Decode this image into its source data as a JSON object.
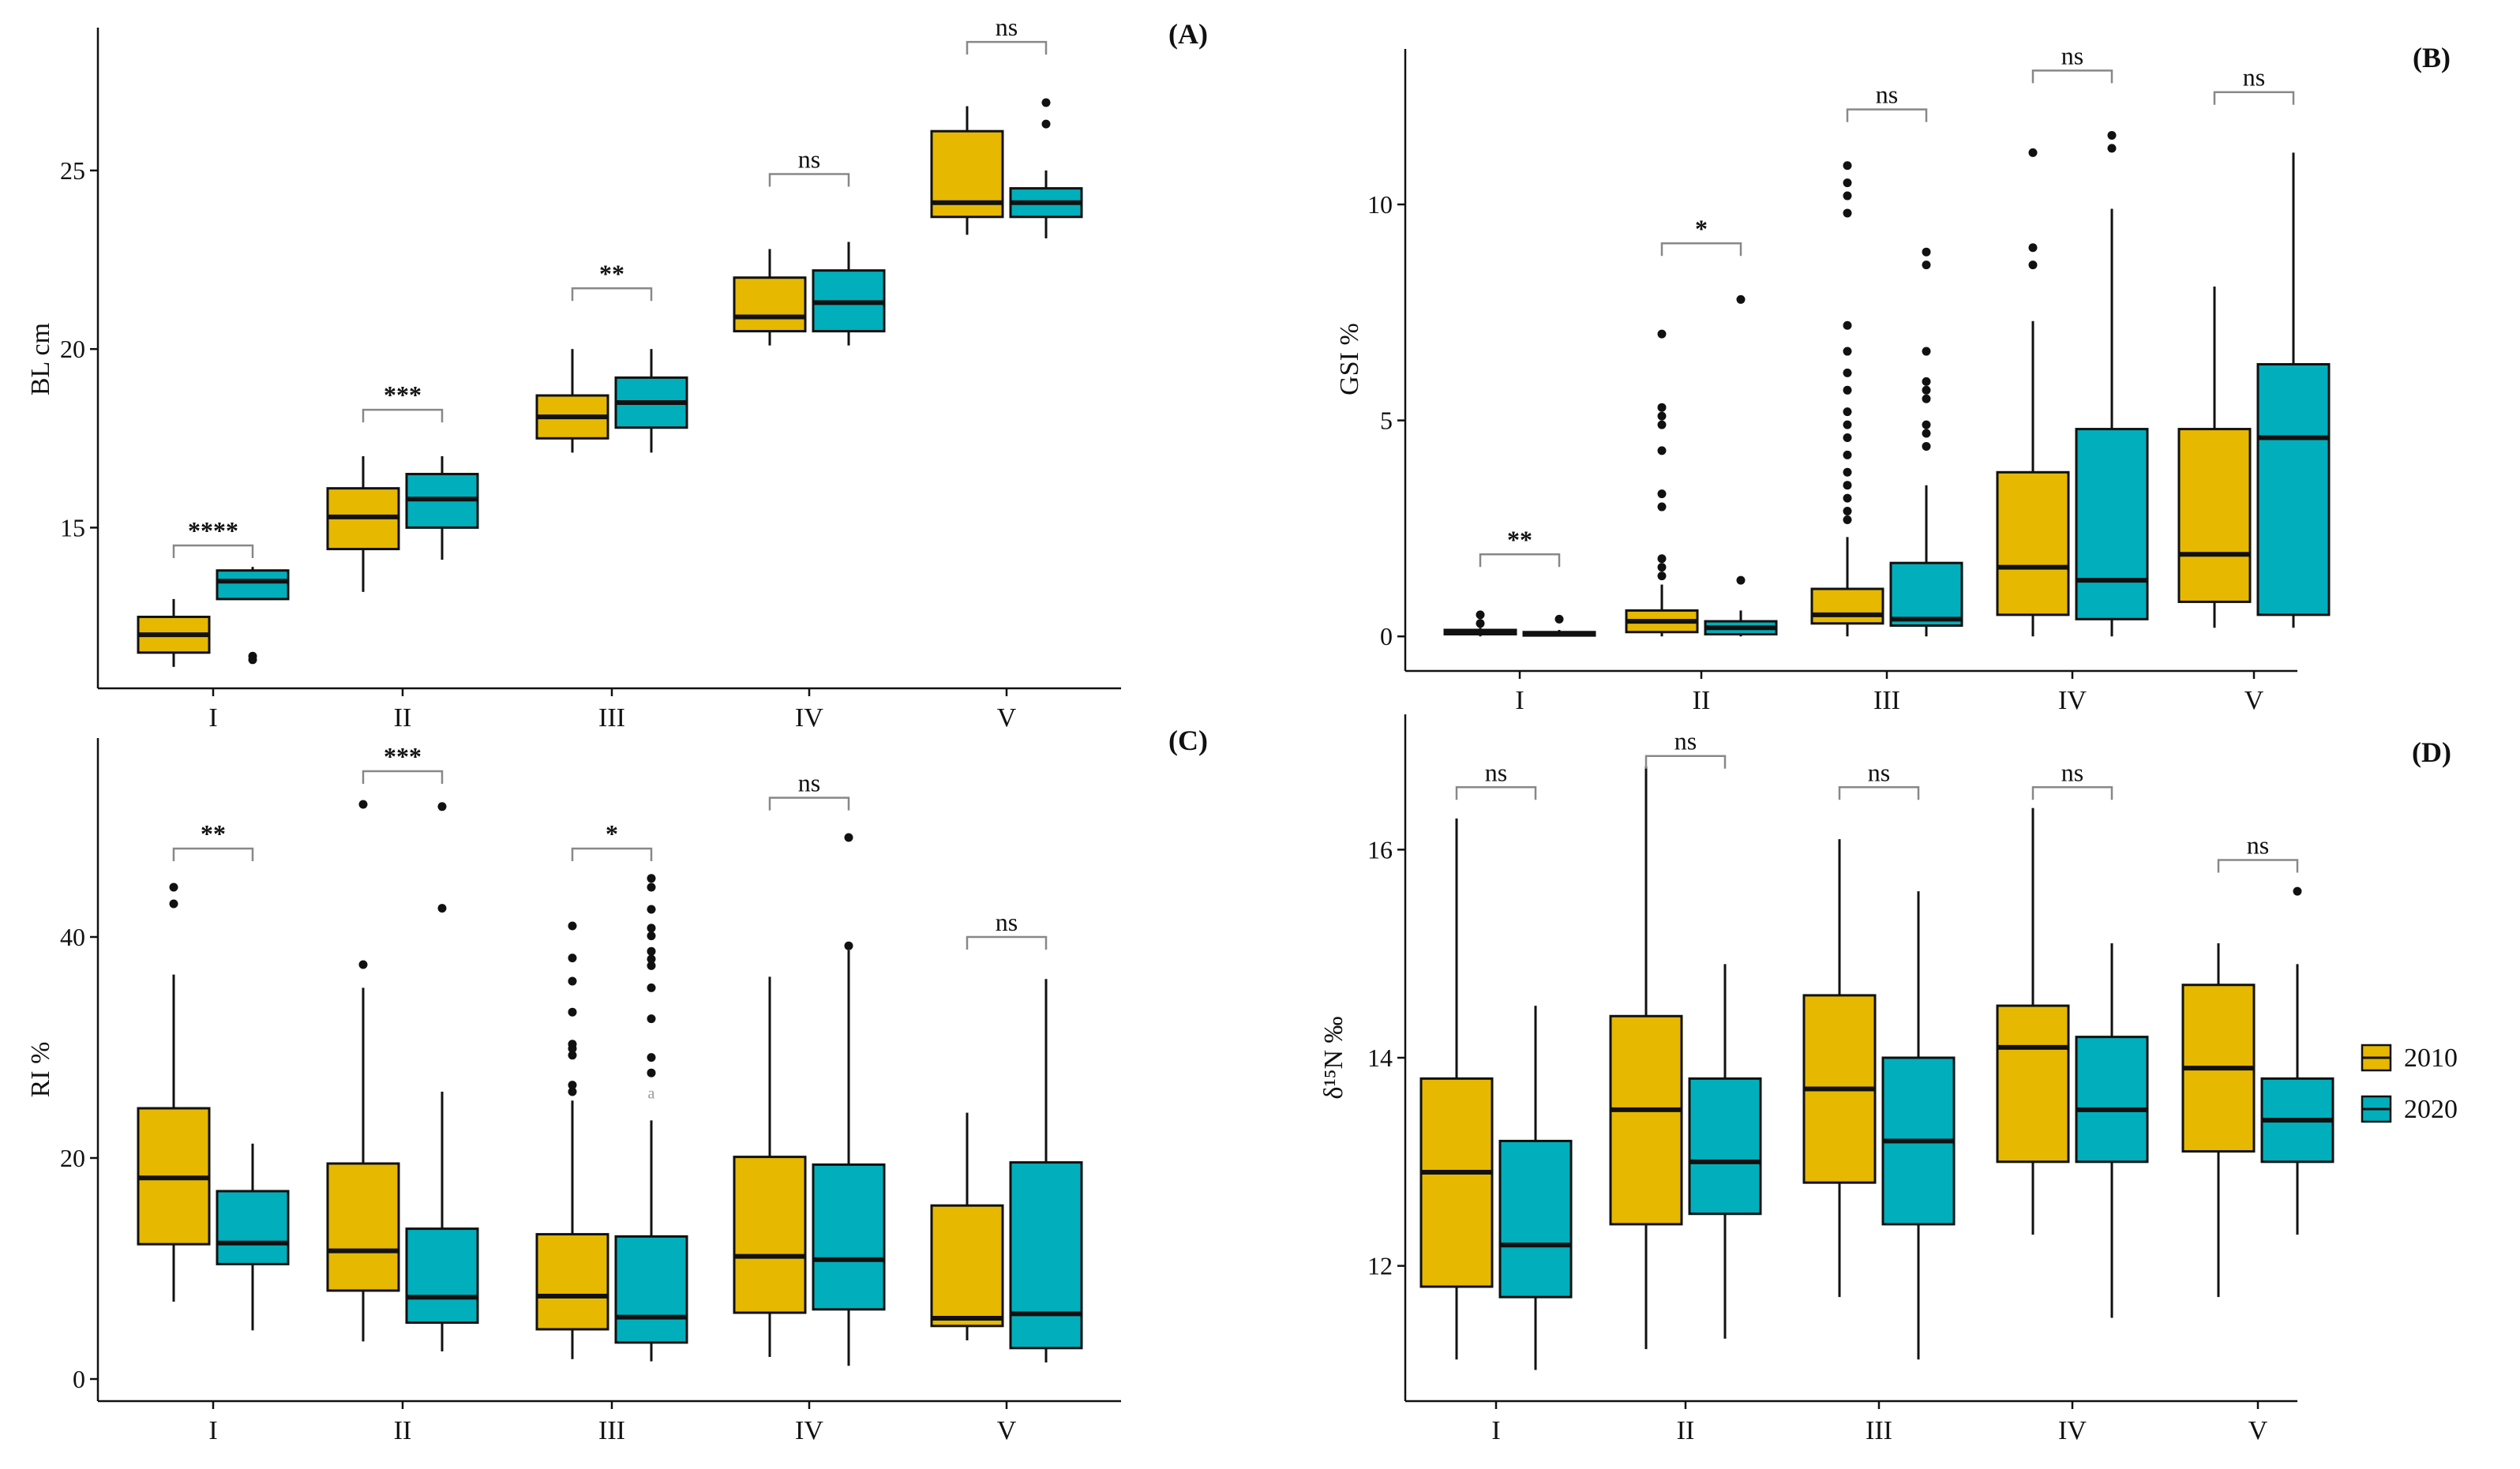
{
  "colors": {
    "2010": "#E6B800",
    "2020": "#00AFBB",
    "axis": "#111111"
  },
  "legend": {
    "entries": [
      "2010",
      "2020"
    ]
  },
  "chart_data": [
    {
      "type": "boxplot",
      "panel": "(A)",
      "ylabel": "BL cm",
      "categories": [
        "I",
        "II",
        "III",
        "IV",
        "V"
      ],
      "ylim": [
        10.5,
        29
      ],
      "yticks": [
        15,
        20,
        25
      ],
      "series": [
        {
          "name": "2010",
          "boxes": [
            {
              "min": 11.1,
              "q1": 11.5,
              "median": 12.0,
              "q3": 12.5,
              "max": 13.0,
              "outliers": []
            },
            {
              "min": 13.2,
              "q1": 14.4,
              "median": 15.3,
              "q3": 16.1,
              "max": 17.0,
              "outliers": []
            },
            {
              "min": 17.1,
              "q1": 17.5,
              "median": 18.1,
              "q3": 18.7,
              "max": 20.0,
              "outliers": []
            },
            {
              "min": 20.1,
              "q1": 20.5,
              "median": 20.9,
              "q3": 22.0,
              "max": 22.8,
              "outliers": []
            },
            {
              "min": 23.2,
              "q1": 23.7,
              "median": 24.1,
              "q3": 26.1,
              "max": 26.8,
              "outliers": []
            }
          ]
        },
        {
          "name": "2020",
          "boxes": [
            {
              "min": 13.0,
              "q1": 13.0,
              "median": 13.5,
              "q3": 13.8,
              "max": 13.9,
              "outliers": [
                11.3,
                11.4
              ]
            },
            {
              "min": 14.1,
              "q1": 15.0,
              "median": 15.8,
              "q3": 16.5,
              "max": 17.0,
              "outliers": []
            },
            {
              "min": 17.1,
              "q1": 17.8,
              "median": 18.5,
              "q3": 19.2,
              "max": 20.0,
              "outliers": []
            },
            {
              "min": 20.1,
              "q1": 20.5,
              "median": 21.3,
              "q3": 22.2,
              "max": 23.0,
              "outliers": []
            },
            {
              "min": 23.1,
              "q1": 23.7,
              "median": 24.1,
              "q3": 24.5,
              "max": 25.0,
              "outliers": [
                26.3,
                26.9
              ]
            }
          ]
        }
      ],
      "significance": [
        {
          "category": "I",
          "label": "****",
          "y": 14.5
        },
        {
          "category": "II",
          "label": "***",
          "y": 18.3
        },
        {
          "category": "III",
          "label": "**",
          "y": 21.7
        },
        {
          "category": "IV",
          "label": "ns",
          "y": 24.9
        },
        {
          "category": "V",
          "label": "ns",
          "y": 28.6
        }
      ]
    },
    {
      "type": "boxplot",
      "panel": "(B)",
      "ylabel": "GSI %",
      "categories": [
        "I",
        "II",
        "III",
        "IV",
        "V"
      ],
      "ylim": [
        -0.8,
        13.6
      ],
      "yticks": [
        0,
        5,
        10
      ],
      "series": [
        {
          "name": "2010",
          "boxes": [
            {
              "min": 0.0,
              "q1": 0.05,
              "median": 0.1,
              "q3": 0.15,
              "max": 0.2,
              "outliers": [
                0.3,
                0.5
              ]
            },
            {
              "min": 0.0,
              "q1": 0.1,
              "median": 0.35,
              "q3": 0.6,
              "max": 1.2,
              "outliers": [
                1.4,
                1.6,
                1.8,
                3.0,
                3.3,
                4.3,
                4.9,
                5.1,
                5.3,
                7.0
              ]
            },
            {
              "min": 0.0,
              "q1": 0.3,
              "median": 0.5,
              "q3": 1.1,
              "max": 2.3,
              "outliers": [
                2.7,
                2.9,
                3.2,
                3.5,
                3.8,
                4.2,
                4.6,
                4.9,
                5.2,
                5.7,
                6.1,
                6.6,
                7.2,
                9.8,
                10.2,
                10.5,
                10.9
              ]
            },
            {
              "min": 0.0,
              "q1": 0.5,
              "median": 1.6,
              "q3": 3.8,
              "max": 7.3,
              "outliers": [
                8.6,
                9.0,
                11.2
              ]
            },
            {
              "min": 0.2,
              "q1": 0.8,
              "median": 1.9,
              "q3": 4.8,
              "max": 8.1,
              "outliers": []
            }
          ]
        },
        {
          "name": "2020",
          "boxes": [
            {
              "min": 0.0,
              "q1": 0.02,
              "median": 0.05,
              "q3": 0.1,
              "max": 0.15,
              "outliers": [
                0.4
              ]
            },
            {
              "min": 0.0,
              "q1": 0.05,
              "median": 0.2,
              "q3": 0.35,
              "max": 0.6,
              "outliers": [
                1.3,
                7.8
              ]
            },
            {
              "min": 0.0,
              "q1": 0.25,
              "median": 0.4,
              "q3": 1.7,
              "max": 3.5,
              "outliers": [
                4.4,
                4.7,
                4.9,
                5.5,
                5.7,
                5.9,
                6.6,
                8.6,
                8.9
              ]
            },
            {
              "min": 0.0,
              "q1": 0.4,
              "median": 1.3,
              "q3": 4.8,
              "max": 9.9,
              "outliers": [
                11.3,
                11.6
              ]
            },
            {
              "min": 0.2,
              "q1": 0.5,
              "median": 4.6,
              "q3": 6.3,
              "max": 11.2,
              "outliers": []
            }
          ]
        }
      ],
      "significance": [
        {
          "category": "I",
          "label": "**",
          "y": 1.9
        },
        {
          "category": "II",
          "label": "*",
          "y": 9.1
        },
        {
          "category": "III",
          "label": "ns",
          "y": 12.2
        },
        {
          "category": "IV",
          "label": "ns",
          "y": 13.1
        },
        {
          "category": "V",
          "label": "ns",
          "y": 12.6
        }
      ]
    },
    {
      "type": "boxplot",
      "panel": "(C)",
      "ylabel": "RI %",
      "categories": [
        "I",
        "II",
        "III",
        "IV",
        "V"
      ],
      "ylim": [
        -2,
        58
      ],
      "yticks": [
        0,
        20,
        40
      ],
      "series": [
        {
          "name": "2010",
          "boxes": [
            {
              "min": 7.0,
              "q1": 12.2,
              "median": 18.2,
              "q3": 24.5,
              "max": 36.6,
              "outliers": [
                43.0,
                44.5
              ]
            },
            {
              "min": 3.4,
              "q1": 8.0,
              "median": 11.6,
              "q3": 19.5,
              "max": 35.4,
              "outliers": [
                37.5,
                52.0
              ]
            },
            {
              "min": 1.8,
              "q1": 4.5,
              "median": 7.5,
              "q3": 13.1,
              "max": 25.2,
              "outliers": [
                26.0,
                26.6,
                29.3,
                29.9,
                30.3,
                33.2,
                36.0,
                38.1,
                41.0
              ]
            },
            {
              "min": 2.0,
              "q1": 6.0,
              "median": 11.1,
              "q3": 20.1,
              "max": 36.4,
              "outliers": []
            },
            {
              "min": 3.5,
              "q1": 4.8,
              "median": 5.5,
              "q3": 15.7,
              "max": 24.1,
              "outliers": []
            }
          ]
        },
        {
          "name": "2020",
          "boxes": [
            {
              "min": 4.4,
              "q1": 10.4,
              "median": 12.3,
              "q3": 17.0,
              "max": 21.3,
              "outliers": []
            },
            {
              "min": 2.5,
              "q1": 5.1,
              "median": 7.4,
              "q3": 13.6,
              "max": 26.0,
              "outliers": [
                42.6,
                51.8
              ]
            },
            {
              "min": 1.6,
              "q1": 3.3,
              "median": 5.6,
              "q3": 12.9,
              "max": 23.4,
              "outliers": [
                27.7,
                29.1,
                32.6,
                35.4,
                37.4,
                38.0,
                38.7,
                40.1,
                40.8,
                42.5,
                44.5,
                45.3
              ]
            },
            {
              "min": 1.2,
              "q1": 6.3,
              "median": 10.8,
              "q3": 19.4,
              "max": 38.8,
              "outliers": [
                39.2,
                49.0
              ]
            },
            {
              "min": 1.5,
              "q1": 2.8,
              "median": 5.9,
              "q3": 19.6,
              "max": 36.2,
              "outliers": []
            }
          ]
        }
      ],
      "significance": [
        {
          "category": "I",
          "label": "**",
          "y": 48.0
        },
        {
          "category": "II",
          "label": "***",
          "y": 55.0
        },
        {
          "category": "III",
          "label": "*",
          "y": 48.0
        },
        {
          "category": "IV",
          "label": "ns",
          "y": 52.6
        },
        {
          "category": "V",
          "label": "ns",
          "y": 40.0
        }
      ],
      "annotations": [
        {
          "text": "a",
          "category": "III",
          "series": "2020",
          "y": 25.4
        }
      ]
    },
    {
      "type": "boxplot",
      "panel": "(D)",
      "ylabel": "δ¹⁵N ‰",
      "categories": [
        "I",
        "II",
        "III",
        "IV",
        "V"
      ],
      "ylim": [
        10.7,
        17.3
      ],
      "yticks": [
        12,
        14,
        16
      ],
      "series": [
        {
          "name": "2010",
          "boxes": [
            {
              "min": 11.1,
              "q1": 11.8,
              "median": 12.9,
              "q3": 13.8,
              "max": 16.3,
              "outliers": []
            },
            {
              "min": 11.2,
              "q1": 12.4,
              "median": 13.5,
              "q3": 14.4,
              "max": 16.8,
              "outliers": []
            },
            {
              "min": 11.7,
              "q1": 12.8,
              "median": 13.7,
              "q3": 14.6,
              "max": 16.1,
              "outliers": []
            },
            {
              "min": 12.3,
              "q1": 13.0,
              "median": 14.1,
              "q3": 14.5,
              "max": 16.4,
              "outliers": []
            },
            {
              "min": 11.7,
              "q1": 13.1,
              "median": 13.9,
              "q3": 14.7,
              "max": 15.1,
              "outliers": []
            }
          ]
        },
        {
          "name": "2020",
          "boxes": [
            {
              "min": 11.0,
              "q1": 11.7,
              "median": 12.2,
              "q3": 13.2,
              "max": 14.5,
              "outliers": []
            },
            {
              "min": 11.3,
              "q1": 12.5,
              "median": 13.0,
              "q3": 13.8,
              "max": 14.9,
              "outliers": []
            },
            {
              "min": 11.1,
              "q1": 12.4,
              "median": 13.2,
              "q3": 14.0,
              "max": 15.6,
              "outliers": []
            },
            {
              "min": 11.5,
              "q1": 13.0,
              "median": 13.5,
              "q3": 14.2,
              "max": 15.1,
              "outliers": []
            },
            {
              "min": 12.3,
              "q1": 13.0,
              "median": 13.4,
              "q3": 13.8,
              "max": 14.9,
              "outliers": [
                15.6
              ]
            }
          ]
        }
      ],
      "significance": [
        {
          "category": "I",
          "label": "ns",
          "y": 16.6
        },
        {
          "category": "II",
          "label": "ns",
          "y": 16.9
        },
        {
          "category": "III",
          "label": "ns",
          "y": 16.6
        },
        {
          "category": "IV",
          "label": "ns",
          "y": 16.6
        },
        {
          "category": "V",
          "label": "ns",
          "y": 15.9
        }
      ]
    }
  ]
}
